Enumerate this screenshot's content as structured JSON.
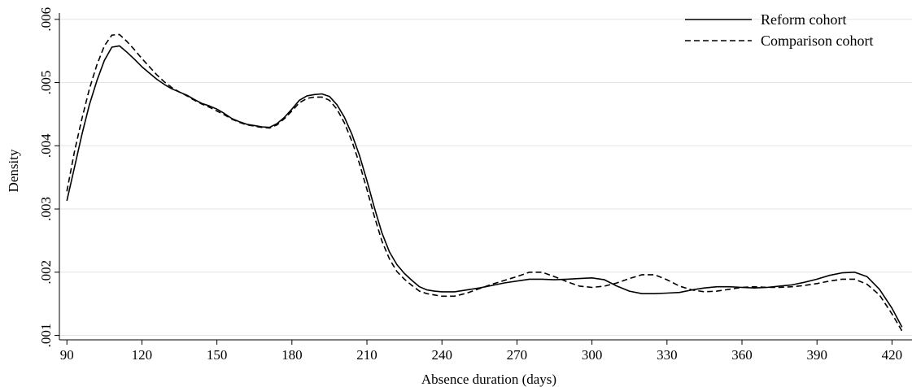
{
  "chart_data": {
    "type": "line",
    "title": "",
    "xlabel": "Absence duration (days)",
    "ylabel": "Density",
    "xlim": [
      87,
      428
    ],
    "ylim": [
      0.00093,
      0.0061
    ],
    "xticks": [
      90,
      120,
      150,
      180,
      210,
      240,
      270,
      300,
      330,
      360,
      390,
      420
    ],
    "yticks": [
      0.001,
      0.002,
      0.003,
      0.004,
      0.005,
      0.006
    ],
    "ytick_labels": [
      ".001",
      ".002",
      ".003",
      ".004",
      ".005",
      ".006"
    ],
    "grid": true,
    "legend_position": "top-right",
    "series": [
      {
        "name": "Reform cohort",
        "style": "solid",
        "color": "#000000",
        "x": [
          90,
          93,
          96,
          99,
          102,
          105,
          108,
          111,
          114,
          117,
          120,
          123,
          126,
          129,
          132,
          135,
          138,
          141,
          144,
          147,
          150,
          153,
          156,
          159,
          162,
          165,
          168,
          171,
          174,
          177,
          180,
          183,
          186,
          189,
          192,
          195,
          198,
          201,
          204,
          207,
          210,
          213,
          216,
          219,
          222,
          225,
          228,
          231,
          234,
          237,
          240,
          245,
          250,
          255,
          260,
          265,
          270,
          275,
          280,
          285,
          290,
          295,
          300,
          305,
          310,
          315,
          320,
          325,
          330,
          335,
          340,
          345,
          350,
          355,
          360,
          365,
          370,
          375,
          380,
          385,
          390,
          395,
          400,
          405,
          410,
          415,
          420,
          424
        ],
        "y": [
          0.00313,
          0.00365,
          0.00418,
          0.00465,
          0.00503,
          0.00535,
          0.00556,
          0.00558,
          0.00548,
          0.00537,
          0.00525,
          0.00515,
          0.00505,
          0.00497,
          0.0049,
          0.00485,
          0.0048,
          0.00473,
          0.00467,
          0.00463,
          0.00458,
          0.00451,
          0.00443,
          0.00438,
          0.00434,
          0.00432,
          0.0043,
          0.00429,
          0.00435,
          0.00445,
          0.00458,
          0.00472,
          0.00479,
          0.00481,
          0.00482,
          0.00478,
          0.00465,
          0.00445,
          0.00418,
          0.00385,
          0.00345,
          0.00302,
          0.00262,
          0.00232,
          0.00212,
          0.00198,
          0.00187,
          0.00177,
          0.00172,
          0.0017,
          0.00169,
          0.00169,
          0.00172,
          0.00175,
          0.00179,
          0.00183,
          0.00186,
          0.00189,
          0.00189,
          0.00188,
          0.00189,
          0.0019,
          0.00191,
          0.00188,
          0.00178,
          0.0017,
          0.00166,
          0.00166,
          0.00167,
          0.00168,
          0.00172,
          0.00175,
          0.00177,
          0.00177,
          0.00176,
          0.00175,
          0.00176,
          0.00178,
          0.0018,
          0.00184,
          0.00189,
          0.00195,
          0.00199,
          0.002,
          0.00193,
          0.00173,
          0.00143,
          0.00113
        ]
      },
      {
        "name": "Comparison cohort",
        "style": "dashed",
        "color": "#000000",
        "x": [
          90,
          93,
          96,
          99,
          102,
          105,
          108,
          111,
          114,
          117,
          120,
          123,
          126,
          129,
          132,
          135,
          138,
          141,
          144,
          147,
          150,
          153,
          156,
          159,
          162,
          165,
          168,
          171,
          174,
          177,
          180,
          183,
          186,
          189,
          192,
          195,
          198,
          201,
          204,
          207,
          210,
          213,
          216,
          219,
          222,
          225,
          228,
          231,
          234,
          237,
          240,
          245,
          250,
          255,
          260,
          265,
          270,
          275,
          280,
          285,
          290,
          295,
          300,
          305,
          310,
          315,
          320,
          325,
          330,
          335,
          340,
          345,
          350,
          355,
          360,
          365,
          370,
          375,
          380,
          385,
          390,
          395,
          400,
          405,
          410,
          415,
          420,
          424
        ],
        "y": [
          0.00328,
          0.0039,
          0.00443,
          0.0049,
          0.00528,
          0.00558,
          0.00575,
          0.00576,
          0.00565,
          0.00552,
          0.00538,
          0.00525,
          0.00512,
          0.00501,
          0.00492,
          0.00485,
          0.00479,
          0.00472,
          0.00466,
          0.00461,
          0.00455,
          0.00449,
          0.00442,
          0.00437,
          0.00433,
          0.00431,
          0.00429,
          0.00428,
          0.00433,
          0.00443,
          0.00455,
          0.00468,
          0.00475,
          0.00477,
          0.00477,
          0.00472,
          0.00458,
          0.00436,
          0.00407,
          0.00372,
          0.00331,
          0.00288,
          0.00249,
          0.00221,
          0.00201,
          0.00189,
          0.00179,
          0.0017,
          0.00166,
          0.00164,
          0.00162,
          0.00162,
          0.00167,
          0.00174,
          0.00181,
          0.00187,
          0.00193,
          0.002,
          0.002,
          0.00193,
          0.00185,
          0.00178,
          0.00176,
          0.00178,
          0.00183,
          0.0019,
          0.00196,
          0.00196,
          0.00188,
          0.00178,
          0.00172,
          0.00169,
          0.0017,
          0.00173,
          0.00176,
          0.00177,
          0.00176,
          0.00176,
          0.00177,
          0.00179,
          0.00182,
          0.00186,
          0.00189,
          0.00189,
          0.00181,
          0.00164,
          0.00134,
          0.00107
        ]
      }
    ]
  }
}
